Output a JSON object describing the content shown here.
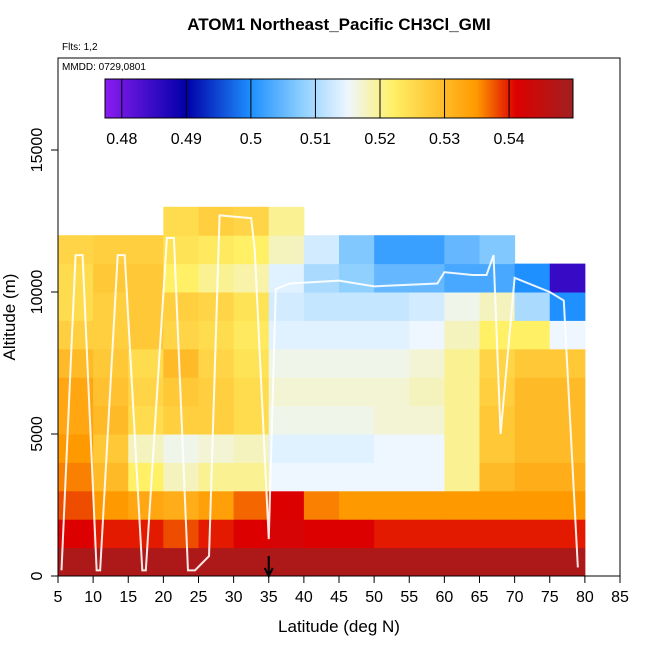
{
  "chart_data": {
    "type": "heatmap",
    "title": "ATOM1 Northeast_Pacific CH3Cl_GMI",
    "subtitle": "Flts: 1,2",
    "annotation": "MMDD: 0729,0801",
    "x_label": "Latitude (deg N)",
    "y_label": "Altitude (m)",
    "xlim": [
      5,
      85
    ],
    "ylim": [
      0,
      18240
    ],
    "xticks": [
      5,
      10,
      15,
      20,
      25,
      30,
      35,
      40,
      45,
      50,
      55,
      60,
      65,
      70,
      75,
      80,
      85
    ],
    "yticks": [
      0,
      5000,
      10000,
      15000
    ],
    "x_bins": [
      5,
      10,
      15,
      20,
      25,
      30,
      35,
      40,
      45,
      50,
      55,
      60,
      65,
      70,
      75,
      80
    ],
    "y_bins": [
      0,
      1000,
      2000,
      3000,
      4000,
      5000,
      6000,
      7000,
      8000,
      9000,
      10000,
      11000,
      12000,
      13000
    ],
    "values": [
      [
        0.548,
        0.548,
        0.548,
        0.548,
        0.548,
        0.548,
        0.548,
        0.548,
        0.548,
        0.548,
        0.548,
        0.548,
        0.548,
        0.548,
        0.548
      ],
      [
        0.541,
        0.54,
        0.54,
        0.538,
        0.54,
        0.541,
        0.542,
        0.541,
        0.541,
        0.54,
        0.54,
        0.54,
        0.54,
        0.54,
        0.54
      ],
      [
        0.538,
        0.535,
        0.533,
        0.532,
        0.534,
        0.537,
        0.541,
        0.536,
        0.535,
        0.535,
        0.535,
        0.535,
        0.535,
        0.535,
        0.535
      ],
      [
        0.536,
        0.53,
        0.522,
        0.518,
        0.52,
        0.52,
        0.515,
        0.515,
        0.515,
        0.515,
        0.515,
        0.52,
        0.53,
        0.532,
        0.532
      ],
      [
        0.535,
        0.528,
        0.518,
        0.516,
        0.517,
        0.518,
        0.514,
        0.514,
        0.514,
        0.515,
        0.515,
        0.52,
        0.528,
        0.53,
        0.53
      ],
      [
        0.533,
        0.53,
        0.525,
        0.527,
        0.527,
        0.525,
        0.516,
        0.516,
        0.516,
        0.517,
        0.517,
        0.52,
        0.528,
        0.53,
        0.53
      ],
      [
        0.533,
        0.529,
        0.526,
        0.528,
        0.527,
        0.525,
        0.517,
        0.517,
        0.517,
        0.517,
        0.518,
        0.52,
        0.527,
        0.53,
        0.53
      ],
      [
        0.53,
        0.528,
        0.525,
        0.53,
        0.526,
        0.524,
        0.516,
        0.516,
        0.516,
        0.516,
        0.517,
        0.52,
        0.526,
        0.528,
        0.528
      ],
      [
        0.527,
        0.527,
        0.528,
        0.526,
        0.525,
        0.523,
        0.514,
        0.514,
        0.514,
        0.514,
        0.515,
        0.518,
        0.522,
        0.522,
        0.515
      ],
      [
        0.525,
        0.527,
        0.528,
        0.527,
        0.526,
        0.524,
        0.513,
        0.512,
        0.512,
        0.512,
        0.513,
        0.516,
        0.518,
        0.51,
        0.5
      ],
      [
        0.525,
        0.528,
        0.528,
        0.522,
        0.52,
        0.519,
        0.514,
        0.51,
        0.508,
        0.505,
        0.505,
        0.503,
        0.503,
        0.5,
        0.485
      ],
      [
        0.526,
        0.527,
        0.527,
        0.524,
        0.523,
        0.522,
        0.518,
        0.513,
        0.507,
        0.502,
        0.502,
        0.505,
        0.507,
        null,
        null
      ],
      [
        null,
        null,
        null,
        0.525,
        0.527,
        0.526,
        0.52,
        null,
        null,
        null,
        null,
        null,
        null,
        null,
        null
      ]
    ],
    "colorbar_lim": [
      0.4774,
      0.5499
    ],
    "colorbar_ticks": [
      0.48,
      0.49,
      0.5,
      0.51,
      0.52,
      0.53,
      0.54
    ],
    "colorscale": [
      {
        "value": 0.4774,
        "color": "#8a1cf0"
      },
      {
        "value": 0.49,
        "color": "#0000a8"
      },
      {
        "value": 0.5,
        "color": "#1e90ff"
      },
      {
        "value": 0.508,
        "color": "#8fd0ff"
      },
      {
        "value": 0.515,
        "color": "#eef6ff"
      },
      {
        "value": 0.522,
        "color": "#fff066"
      },
      {
        "value": 0.535,
        "color": "#ff9900"
      },
      {
        "value": 0.541,
        "color": "#dd0000"
      },
      {
        "value": 0.5499,
        "color": "#a02020"
      }
    ],
    "track": {
      "color": "#ffffff",
      "lat": [
        5.5,
        7.5,
        8.5,
        10.5,
        11,
        13.5,
        14.5,
        17,
        17.5,
        20.5,
        21.5,
        23.5,
        24.5,
        26.5,
        28,
        32.5,
        33,
        35,
        36,
        38,
        45,
        50,
        59,
        60,
        64,
        66,
        67,
        68,
        70,
        75,
        77,
        79
      ],
      "alt": [
        200,
        11300,
        11300,
        200,
        200,
        11300,
        11300,
        200,
        200,
        11900,
        11900,
        200,
        200,
        700,
        12700,
        12600,
        11500,
        1300,
        10100,
        10300,
        10400,
        10200,
        10300,
        10700,
        10600,
        10600,
        11300,
        5000,
        10500,
        10000,
        9700,
        300
      ]
    },
    "marker_lat": 35
  }
}
